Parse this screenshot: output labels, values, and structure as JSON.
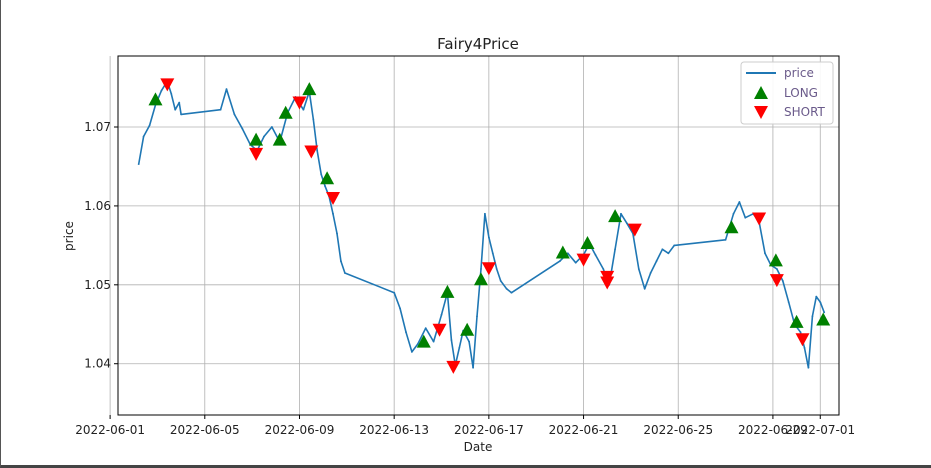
{
  "chart_data": {
    "type": "line",
    "title": "Fairy4Price",
    "xlabel": "Date",
    "ylabel": "price",
    "grid": true,
    "legend_placement": "top-right",
    "xlim": [
      "2022-06-01T08:00",
      "2022-07-01T19:00"
    ],
    "ylim": [
      1.0335,
      1.079
    ],
    "x_ticks": [
      "2022-06-01",
      "2022-06-05",
      "2022-06-09",
      "2022-06-13",
      "2022-06-17",
      "2022-06-21",
      "2022-06-25",
      "2022-06-29",
      "2022-07-01"
    ],
    "y_ticks": [
      1.04,
      1.05,
      1.06,
      1.07
    ],
    "colors": {
      "price": "#1f77b4",
      "long": "#008000",
      "short": "#ff0000"
    },
    "series": [
      {
        "name": "price",
        "kind": "line",
        "points": [
          [
            "2022-06-02T05:00",
            1.0653
          ],
          [
            "2022-06-02T10:00",
            1.0688
          ],
          [
            "2022-06-02T16:00",
            1.0702
          ],
          [
            "2022-06-02T22:00",
            1.0728
          ],
          [
            "2022-06-03T04:00",
            1.0746
          ],
          [
            "2022-06-03T10:00",
            1.0758
          ],
          [
            "2022-06-03T14:00",
            1.0742
          ],
          [
            "2022-06-03T18:00",
            1.0722
          ],
          [
            "2022-06-03T22:00",
            1.0731
          ],
          [
            "2022-06-04T00:00",
            1.0716
          ],
          [
            "2022-06-05T16:00",
            1.0722
          ],
          [
            "2022-06-05T22:00",
            1.0748
          ],
          [
            "2022-06-06T06:00",
            1.0716
          ],
          [
            "2022-06-06T14:00",
            1.0698
          ],
          [
            "2022-06-06T22:00",
            1.0678
          ],
          [
            "2022-06-07T05:00",
            1.067
          ],
          [
            "2022-06-07T12:00",
            1.0688
          ],
          [
            "2022-06-07T20:00",
            1.07
          ],
          [
            "2022-06-08T04:00",
            1.0681
          ],
          [
            "2022-06-08T12:00",
            1.0718
          ],
          [
            "2022-06-08T20:00",
            1.0738
          ],
          [
            "2022-06-09T04:00",
            1.0722
          ],
          [
            "2022-06-09T10:00",
            1.0745
          ],
          [
            "2022-06-09T14:00",
            1.071
          ],
          [
            "2022-06-09T18:00",
            1.067
          ],
          [
            "2022-06-09T22:00",
            1.064
          ],
          [
            "2022-06-10T02:00",
            1.0625
          ],
          [
            "2022-06-10T06:00",
            1.0612
          ],
          [
            "2022-06-10T10:00",
            1.059
          ],
          [
            "2022-06-10T14:00",
            1.0565
          ],
          [
            "2022-06-10T18:00",
            1.053
          ],
          [
            "2022-06-10T22:00",
            1.0515
          ],
          [
            "2022-06-13T00:00",
            1.049
          ],
          [
            "2022-06-13T06:00",
            1.047
          ],
          [
            "2022-06-13T12:00",
            1.044
          ],
          [
            "2022-06-13T18:00",
            1.0415
          ],
          [
            "2022-06-14T00:00",
            1.0425
          ],
          [
            "2022-06-14T08:00",
            1.0445
          ],
          [
            "2022-06-14T16:00",
            1.0428
          ],
          [
            "2022-06-15T00:00",
            1.0462
          ],
          [
            "2022-06-15T06:00",
            1.049
          ],
          [
            "2022-06-15T10:00",
            1.043
          ],
          [
            "2022-06-15T14:00",
            1.0398
          ],
          [
            "2022-06-15T18:00",
            1.042
          ],
          [
            "2022-06-15T22:00",
            1.0442
          ],
          [
            "2022-06-16T04:00",
            1.0428
          ],
          [
            "2022-06-16T08:00",
            1.0395
          ],
          [
            "2022-06-16T12:00",
            1.046
          ],
          [
            "2022-06-16T16:00",
            1.052
          ],
          [
            "2022-06-16T20:00",
            1.059
          ],
          [
            "2022-06-17T00:00",
            1.056
          ],
          [
            "2022-06-17T04:00",
            1.054
          ],
          [
            "2022-06-17T08:00",
            1.052
          ],
          [
            "2022-06-17T12:00",
            1.0505
          ],
          [
            "2022-06-17T18:00",
            1.0495
          ],
          [
            "2022-06-17T23:00",
            1.049
          ],
          [
            "2022-06-20T00:00",
            1.053
          ],
          [
            "2022-06-20T08:00",
            1.054
          ],
          [
            "2022-06-20T16:00",
            1.0528
          ],
          [
            "2022-06-21T00:00",
            1.0538
          ],
          [
            "2022-06-21T06:00",
            1.0552
          ],
          [
            "2022-06-21T12:00",
            1.0538
          ],
          [
            "2022-06-21T20:00",
            1.052
          ],
          [
            "2022-06-22T02:00",
            1.05
          ],
          [
            "2022-06-22T08:00",
            1.0545
          ],
          [
            "2022-06-22T14:00",
            1.059
          ],
          [
            "2022-06-22T20:00",
            1.0578
          ],
          [
            "2022-06-23T02:00",
            1.0565
          ],
          [
            "2022-06-23T08:00",
            1.052
          ],
          [
            "2022-06-23T14:00",
            1.0495
          ],
          [
            "2022-06-23T20:00",
            1.0515
          ],
          [
            "2022-06-24T02:00",
            1.053
          ],
          [
            "2022-06-24T08:00",
            1.0545
          ],
          [
            "2022-06-24T14:00",
            1.054
          ],
          [
            "2022-06-24T20:00",
            1.055
          ],
          [
            "2022-06-27T00:00",
            1.0557
          ],
          [
            "2022-06-27T08:00",
            1.059
          ],
          [
            "2022-06-27T14:00",
            1.0605
          ],
          [
            "2022-06-27T20:00",
            1.0585
          ],
          [
            "2022-06-28T04:00",
            1.059
          ],
          [
            "2022-06-28T10:00",
            1.058
          ],
          [
            "2022-06-28T16:00",
            1.054
          ],
          [
            "2022-06-28T22:00",
            1.0525
          ],
          [
            "2022-06-29T04:00",
            1.052
          ],
          [
            "2022-06-29T10:00",
            1.0505
          ],
          [
            "2022-06-29T16:00",
            1.0478
          ],
          [
            "2022-06-29T22:00",
            1.045
          ],
          [
            "2022-06-30T04:00",
            1.044
          ],
          [
            "2022-06-30T08:00",
            1.042
          ],
          [
            "2022-06-30T12:00",
            1.0395
          ],
          [
            "2022-06-30T16:00",
            1.046
          ],
          [
            "2022-06-30T20:00",
            1.0485
          ],
          [
            "2022-07-01T00:00",
            1.0478
          ],
          [
            "2022-07-01T04:00",
            1.0465
          ]
        ]
      },
      {
        "name": "LONG",
        "kind": "marker",
        "marker": "triangle-up",
        "points": [
          [
            "2022-06-02T22:00",
            1.0735
          ],
          [
            "2022-06-07T04:00",
            1.0684
          ],
          [
            "2022-06-08T04:00",
            1.0684
          ],
          [
            "2022-06-08T10:00",
            1.0718
          ],
          [
            "2022-06-09T10:00",
            1.0748
          ],
          [
            "2022-06-10T04:00",
            1.0635
          ],
          [
            "2022-06-14T06:00",
            1.0428
          ],
          [
            "2022-06-15T06:00",
            1.0491
          ],
          [
            "2022-06-16T02:00",
            1.0443
          ],
          [
            "2022-06-16T16:00",
            1.0507
          ],
          [
            "2022-06-20T03:00",
            1.0541
          ],
          [
            "2022-06-21T04:00",
            1.0553
          ],
          [
            "2022-06-22T08:00",
            1.0587
          ],
          [
            "2022-06-27T06:00",
            1.0573
          ],
          [
            "2022-06-29T03:00",
            1.0531
          ],
          [
            "2022-06-30T00:00",
            1.0453
          ],
          [
            "2022-07-01T03:00",
            1.0456
          ]
        ]
      },
      {
        "name": "SHORT",
        "kind": "marker",
        "marker": "triangle-down",
        "points": [
          [
            "2022-06-03T10:00",
            1.0754
          ],
          [
            "2022-06-07T04:00",
            1.0666
          ],
          [
            "2022-06-09T00:00",
            1.0731
          ],
          [
            "2022-06-09T12:00",
            1.0669
          ],
          [
            "2022-06-10T10:00",
            1.061
          ],
          [
            "2022-06-14T22:00",
            1.0443
          ],
          [
            "2022-06-15T12:00",
            1.0396
          ],
          [
            "2022-06-17T00:00",
            1.0521
          ],
          [
            "2022-06-21T00:00",
            1.0532
          ],
          [
            "2022-06-22T00:00",
            1.051
          ],
          [
            "2022-06-22T00:00",
            1.0503
          ],
          [
            "2022-06-23T04:00",
            1.057
          ],
          [
            "2022-06-28T10:00",
            1.0584
          ],
          [
            "2022-06-29T04:00",
            1.0506
          ],
          [
            "2022-06-30T06:00",
            1.0431
          ]
        ]
      }
    ]
  }
}
